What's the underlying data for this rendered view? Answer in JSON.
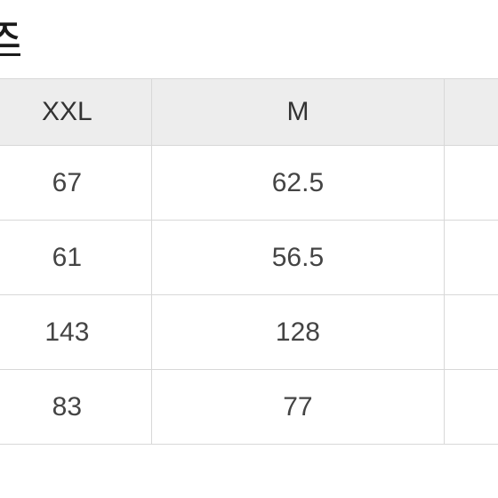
{
  "title": "즈",
  "table": {
    "type": "table",
    "columns": [
      "XXL",
      "M",
      ""
    ],
    "rows": [
      [
        "67",
        "62.5",
        ""
      ],
      [
        "61",
        "56.5",
        ""
      ],
      [
        "143",
        "128",
        ""
      ],
      [
        "83",
        "77",
        ""
      ]
    ],
    "header_bg": "#ededed",
    "border_color": "#d8d8d8",
    "text_color": "#444444",
    "background_color": "#ffffff",
    "font_size": 30,
    "header_font_size": 30
  }
}
